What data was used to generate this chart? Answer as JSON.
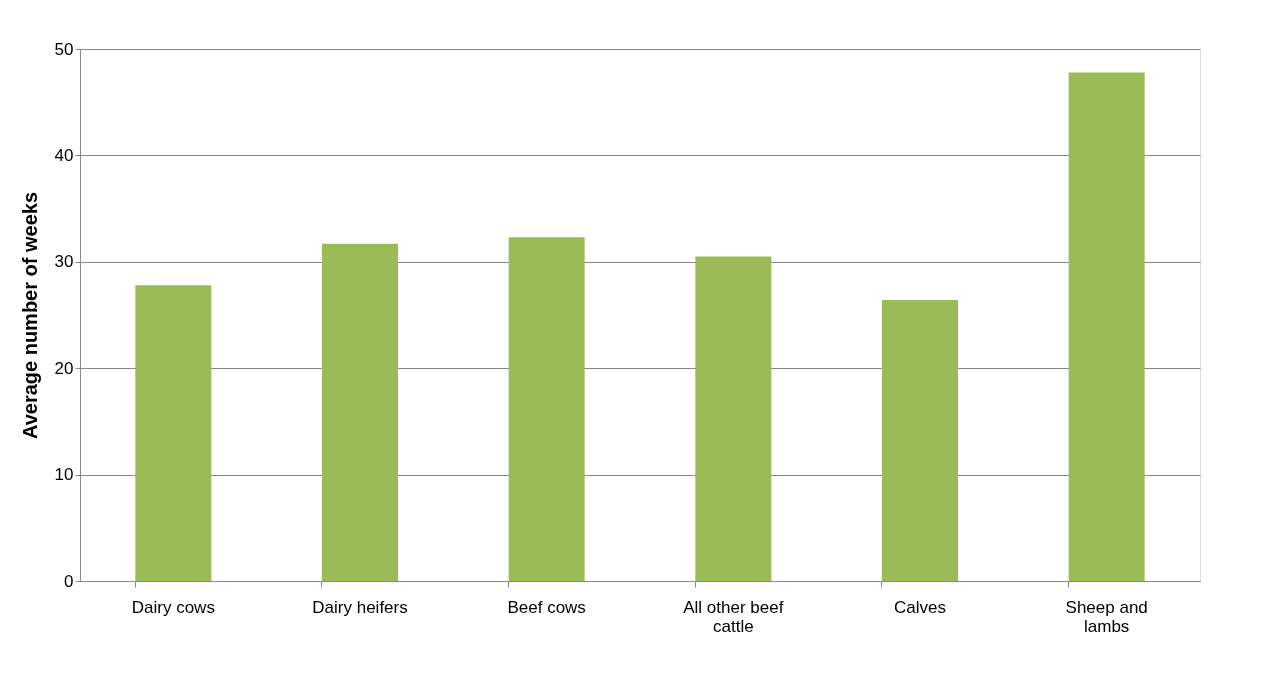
{
  "chart_data": {
    "type": "bar",
    "ylabel": "Average number of weeks",
    "categories": [
      "Dairy cows",
      "Dairy heifers",
      "Beef cows",
      "All other beef cattle",
      "Calves",
      "Sheep and lambs"
    ],
    "values": [
      27.8,
      31.7,
      32.3,
      30.5,
      26.4,
      47.8
    ],
    "color": "#9bbb59",
    "ylim": [
      0,
      50
    ],
    "yticks": [
      0,
      10,
      20,
      30,
      40,
      50
    ],
    "grid": "y"
  }
}
